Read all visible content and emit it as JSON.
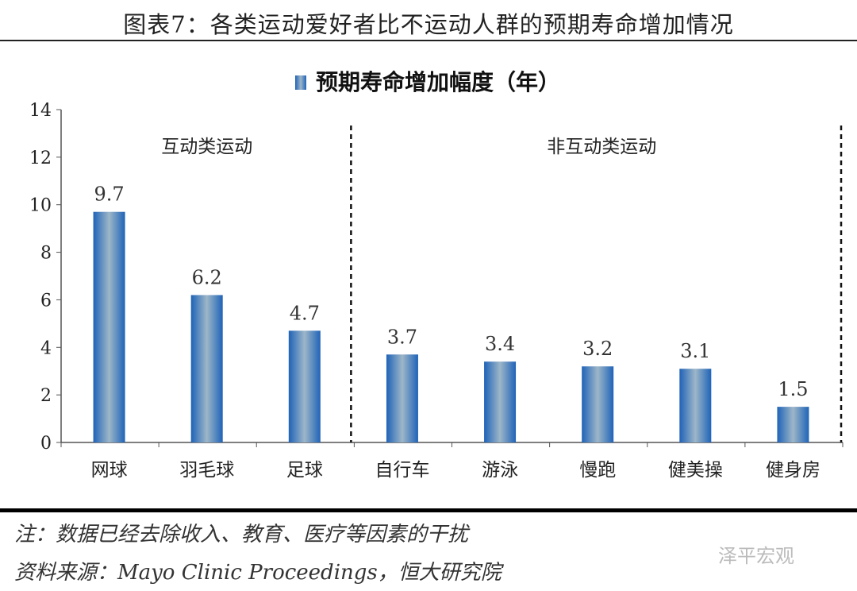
{
  "title": "图表7：各类运动爱好者比不运动人群的预期寿命增加情况",
  "notes": {
    "note": "注：数据已经去除收入、教育、医疗等因素的干扰",
    "source": "资料来源：Mayo Clinic Proceedings，恒大研究院"
  },
  "watermark": "泽平宏观",
  "colors": {
    "bar_edge": "#1f63b8",
    "bar_center": "#9db6c8"
  },
  "chart_data": {
    "type": "bar",
    "title": "",
    "legend": {
      "label": "预期寿命增加幅度（年）",
      "position": "top"
    },
    "categories": [
      "网球",
      "羽毛球",
      "足球",
      "自行车",
      "游泳",
      "慢跑",
      "健美操",
      "健身房"
    ],
    "values": [
      9.7,
      6.2,
      4.7,
      3.7,
      3.4,
      3.2,
      3.1,
      1.5
    ],
    "data_labels": [
      "9.7",
      "6.2",
      "4.7",
      "3.7",
      "3.4",
      "3.2",
      "3.1",
      "1.5"
    ],
    "ylim": [
      0,
      14
    ],
    "yticks": [
      "0",
      "2",
      "4",
      "6",
      "8",
      "10",
      "12",
      "14"
    ],
    "xlabel": "",
    "ylabel": "",
    "grid": false,
    "groups": [
      {
        "label": "互动类运动",
        "start": 0,
        "end": 2
      },
      {
        "label": "非互动类运动",
        "start": 3,
        "end": 7
      }
    ]
  }
}
